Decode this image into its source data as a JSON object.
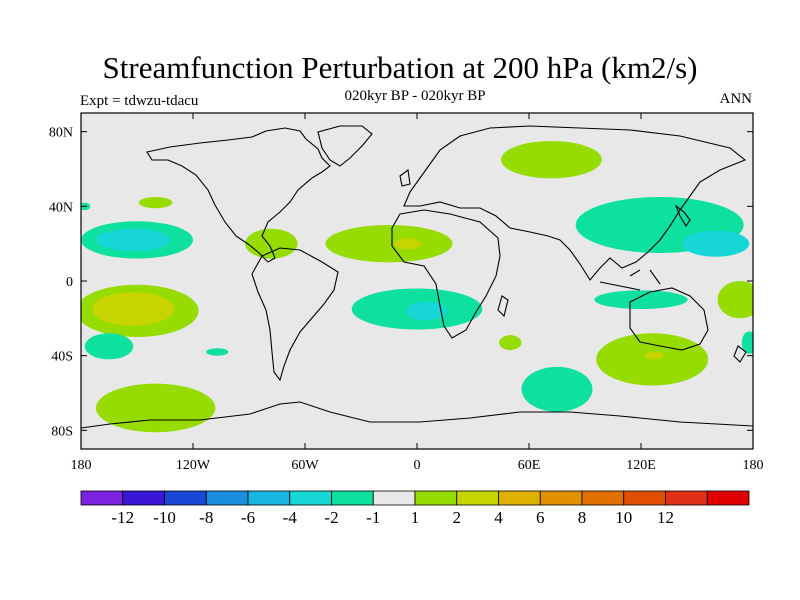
{
  "title": "Streamfunction Perturbation at 200 hPa (km2/s)",
  "subtitle": "020kyr BP - 020kyr BP",
  "left_label": "Expt = tdwzu-tdacu",
  "right_label": "ANN",
  "map": {
    "lon_range": [
      -180,
      180
    ],
    "lat_range": [
      -90,
      90
    ],
    "lat_ticks": [
      {
        "value": 80,
        "label": "80N"
      },
      {
        "value": 40,
        "label": "40N"
      },
      {
        "value": 0,
        "label": "0"
      },
      {
        "value": -40,
        "label": "40S"
      },
      {
        "value": -80,
        "label": "80S"
      }
    ],
    "lon_ticks": [
      {
        "value": -180,
        "label": "180"
      },
      {
        "value": -120,
        "label": "120W"
      },
      {
        "value": -60,
        "label": "60W"
      },
      {
        "value": 0,
        "label": "0"
      },
      {
        "value": 60,
        "label": "60E"
      },
      {
        "value": 120,
        "label": "120E"
      },
      {
        "value": 180,
        "label": "180"
      }
    ],
    "background_color": "#e8e8e8"
  },
  "colorbar": {
    "colors": [
      "#7b22e0",
      "#3a16d6",
      "#1a48d6",
      "#1c8ee0",
      "#16b6e0",
      "#16d6d6",
      "#0ee0a0",
      "#e8e8e8",
      "#96dc00",
      "#c8d400",
      "#e0b000",
      "#e09000",
      "#e07000",
      "#e05000",
      "#e03018",
      "#e00000"
    ],
    "labels": [
      "-12",
      "-10",
      "-8",
      "-6",
      "-4",
      "-2",
      "-1",
      "1",
      "2",
      "4",
      "6",
      "8",
      "10",
      "12"
    ]
  },
  "regions": [
    {
      "name": "region-n-pacific-west-light",
      "color": "#0ee0a0",
      "lon": -178,
      "lat": 40,
      "rx": 3,
      "ry": 2
    },
    {
      "name": "region-n-pacific-subtrop-light",
      "color": "#0ee0a0",
      "lon": -150,
      "lat": 22,
      "rx": 30,
      "ry": 10
    },
    {
      "name": "region-n-pacific-subtrop-dark",
      "color": "#16d6d6",
      "lon": -152,
      "lat": 22,
      "rx": 20,
      "ry": 6
    },
    {
      "name": "region-n-pacific-green",
      "color": "#96dc00",
      "lon": -140,
      "lat": 42,
      "rx": 9,
      "ry": 3
    },
    {
      "name": "region-s-pacific-green",
      "color": "#96dc00",
      "lon": -150,
      "lat": -16,
      "rx": 33,
      "ry": 14
    },
    {
      "name": "region-s-pacific-yellow",
      "color": "#c8d400",
      "lon": -152,
      "lat": -15,
      "rx": 22,
      "ry": 9
    },
    {
      "name": "region-s-pacific-light-1",
      "color": "#0ee0a0",
      "lon": -165,
      "lat": -35,
      "rx": 13,
      "ry": 7
    },
    {
      "name": "region-s-pacific-light-2",
      "color": "#0ee0a0",
      "lon": -107,
      "lat": -38,
      "rx": 6,
      "ry": 2
    },
    {
      "name": "region-s-pacific-high-lat",
      "color": "#96dc00",
      "lon": -140,
      "lat": -68,
      "rx": 32,
      "ry": 13
    },
    {
      "name": "region-caribbean-green",
      "color": "#96dc00",
      "lon": -78,
      "lat": 20,
      "rx": 14,
      "ry": 8
    },
    {
      "name": "region-atlantic-green",
      "color": "#96dc00",
      "lon": -15,
      "lat": 20,
      "rx": 34,
      "ry": 10
    },
    {
      "name": "region-atlantic-yellow",
      "color": "#c8d400",
      "lon": -5,
      "lat": 20,
      "rx": 7,
      "ry": 3
    },
    {
      "name": "region-s-atlantic-light",
      "color": "#0ee0a0",
      "lon": 0,
      "lat": -15,
      "rx": 35,
      "ry": 11
    },
    {
      "name": "region-s-atlantic-dark",
      "color": "#16d6d6",
      "lon": 5,
      "lat": -16,
      "rx": 11,
      "ry": 5
    },
    {
      "name": "region-s-atlantic-green",
      "color": "#96dc00",
      "lon": 50,
      "lat": -33,
      "rx": 6,
      "ry": 4
    },
    {
      "name": "region-siberia-green",
      "color": "#96dc00",
      "lon": 72,
      "lat": 65,
      "rx": 27,
      "ry": 10
    },
    {
      "name": "region-e-asia-light",
      "color": "#0ee0a0",
      "lon": 130,
      "lat": 30,
      "rx": 45,
      "ry": 15
    },
    {
      "name": "region-w-pacific-dark",
      "color": "#16d6d6",
      "lon": 160,
      "lat": 20,
      "rx": 18,
      "ry": 7
    },
    {
      "name": "region-indian-ocean-light",
      "color": "#0ee0a0",
      "lon": 120,
      "lat": -10,
      "rx": 25,
      "ry": 5
    },
    {
      "name": "region-sw-pacific-green",
      "color": "#96dc00",
      "lon": 173,
      "lat": -10,
      "rx": 12,
      "ry": 10
    },
    {
      "name": "region-s-indian-green",
      "color": "#96dc00",
      "lon": 126,
      "lat": -42,
      "rx": 30,
      "ry": 14
    },
    {
      "name": "region-s-indian-yellow",
      "color": "#c8d400",
      "lon": 127,
      "lat": -40,
      "rx": 5,
      "ry": 2
    },
    {
      "name": "region-tasman-light",
      "color": "#0ee0a0",
      "lon": 178,
      "lat": -33,
      "rx": 4,
      "ry": 6
    },
    {
      "name": "region-southern-ocean-light",
      "color": "#0ee0a0",
      "lon": 75,
      "lat": -58,
      "rx": 19,
      "ry": 12
    }
  ]
}
